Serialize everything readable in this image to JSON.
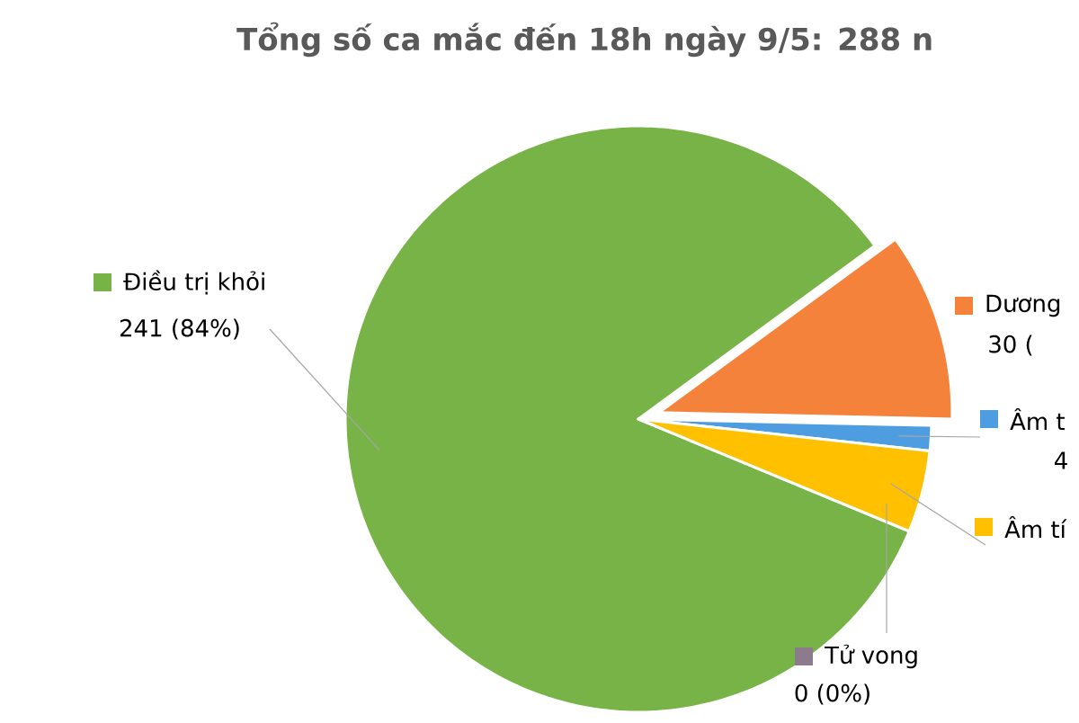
{
  "chart_data": {
    "type": "pie",
    "title": "Tổng số ca mắc đến 18h ngày 9/5: 288 n",
    "categories": [
      "Điều trị khỏi",
      "Dương",
      "Âm t",
      "Âm tí",
      "Tử vong"
    ],
    "values": [
      241,
      30,
      4,
      13,
      0
    ],
    "colors": [
      "#77b347",
      "#f4823a",
      "#4d9de0",
      "#ffc000",
      "#8c7b8c"
    ],
    "value_labels": [
      "241 (84%)",
      "30 (",
      "4",
      null,
      "0 (0%)"
    ],
    "legend": "bottom left"
  }
}
